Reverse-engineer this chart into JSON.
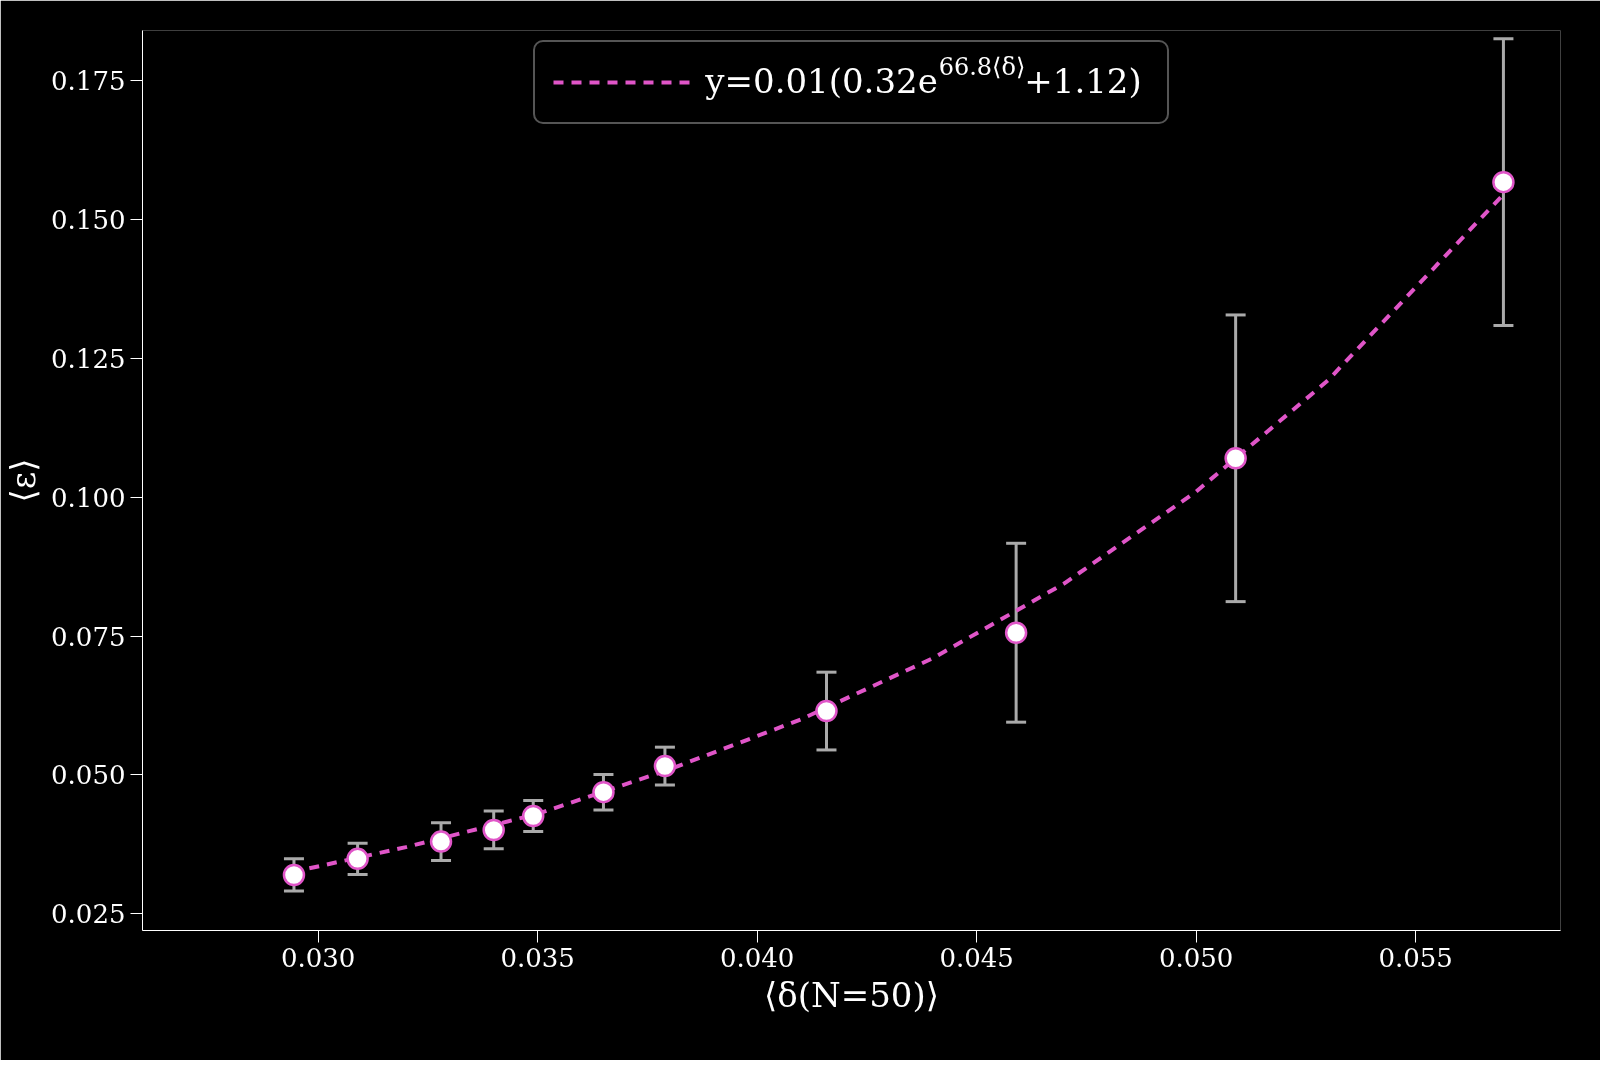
{
  "chart_data": {
    "type": "scatter",
    "xlabel": "⟨δ(N=50)⟩",
    "ylabel": "⟨ε⟩",
    "xlim": [
      0.026,
      0.0583
    ],
    "ylim": [
      0.022,
      0.184
    ],
    "xticks": [
      {
        "value": 0.03,
        "label": "0.030"
      },
      {
        "value": 0.035,
        "label": "0.035"
      },
      {
        "value": 0.04,
        "label": "0.040"
      },
      {
        "value": 0.045,
        "label": "0.045"
      },
      {
        "value": 0.05,
        "label": "0.050"
      },
      {
        "value": 0.055,
        "label": "0.055"
      }
    ],
    "yticks": [
      {
        "value": 0.025,
        "label": "0.025"
      },
      {
        "value": 0.05,
        "label": "0.050"
      },
      {
        "value": 0.075,
        "label": "0.075"
      },
      {
        "value": 0.1,
        "label": "0.100"
      },
      {
        "value": 0.125,
        "label": "0.125"
      },
      {
        "value": 0.15,
        "label": "0.150"
      },
      {
        "value": 0.175,
        "label": "0.175"
      }
    ],
    "grid": false,
    "legend": "top",
    "marker": "circle",
    "series": [
      {
        "color": "#ffffff",
        "x": [
          0.02945,
          0.0309,
          0.0328,
          0.034,
          0.0349,
          0.0365,
          0.0379,
          0.04158,
          0.0459,
          0.0509,
          0.057
        ],
        "values": [
          0.032,
          0.0349,
          0.038,
          0.0401,
          0.0426,
          0.0469,
          0.0516,
          0.0615,
          0.0756,
          0.107,
          0.1567
        ],
        "errors": [
          0.0029,
          0.0028,
          0.0034,
          0.0034,
          0.0028,
          0.0032,
          0.0034,
          0.007,
          0.0161,
          0.0258,
          0.0258
        ]
      },
      {
        "type": "line",
        "name": "y=0.01(0.32e$^{66.8⟨δ⟩}$+1.12)",
        "color": "#e055c8",
        "line_style": "dashed",
        "marker": "none",
        "x": [
          0.0294,
          0.032,
          0.035,
          0.038,
          0.041,
          0.044,
          0.047,
          0.05,
          0.053,
          0.057
        ],
        "values": [
          0.0325,
          0.037,
          0.043,
          0.051,
          0.06,
          0.071,
          0.0845,
          0.101,
          0.121,
          0.1545
        ]
      }
    ]
  }
}
